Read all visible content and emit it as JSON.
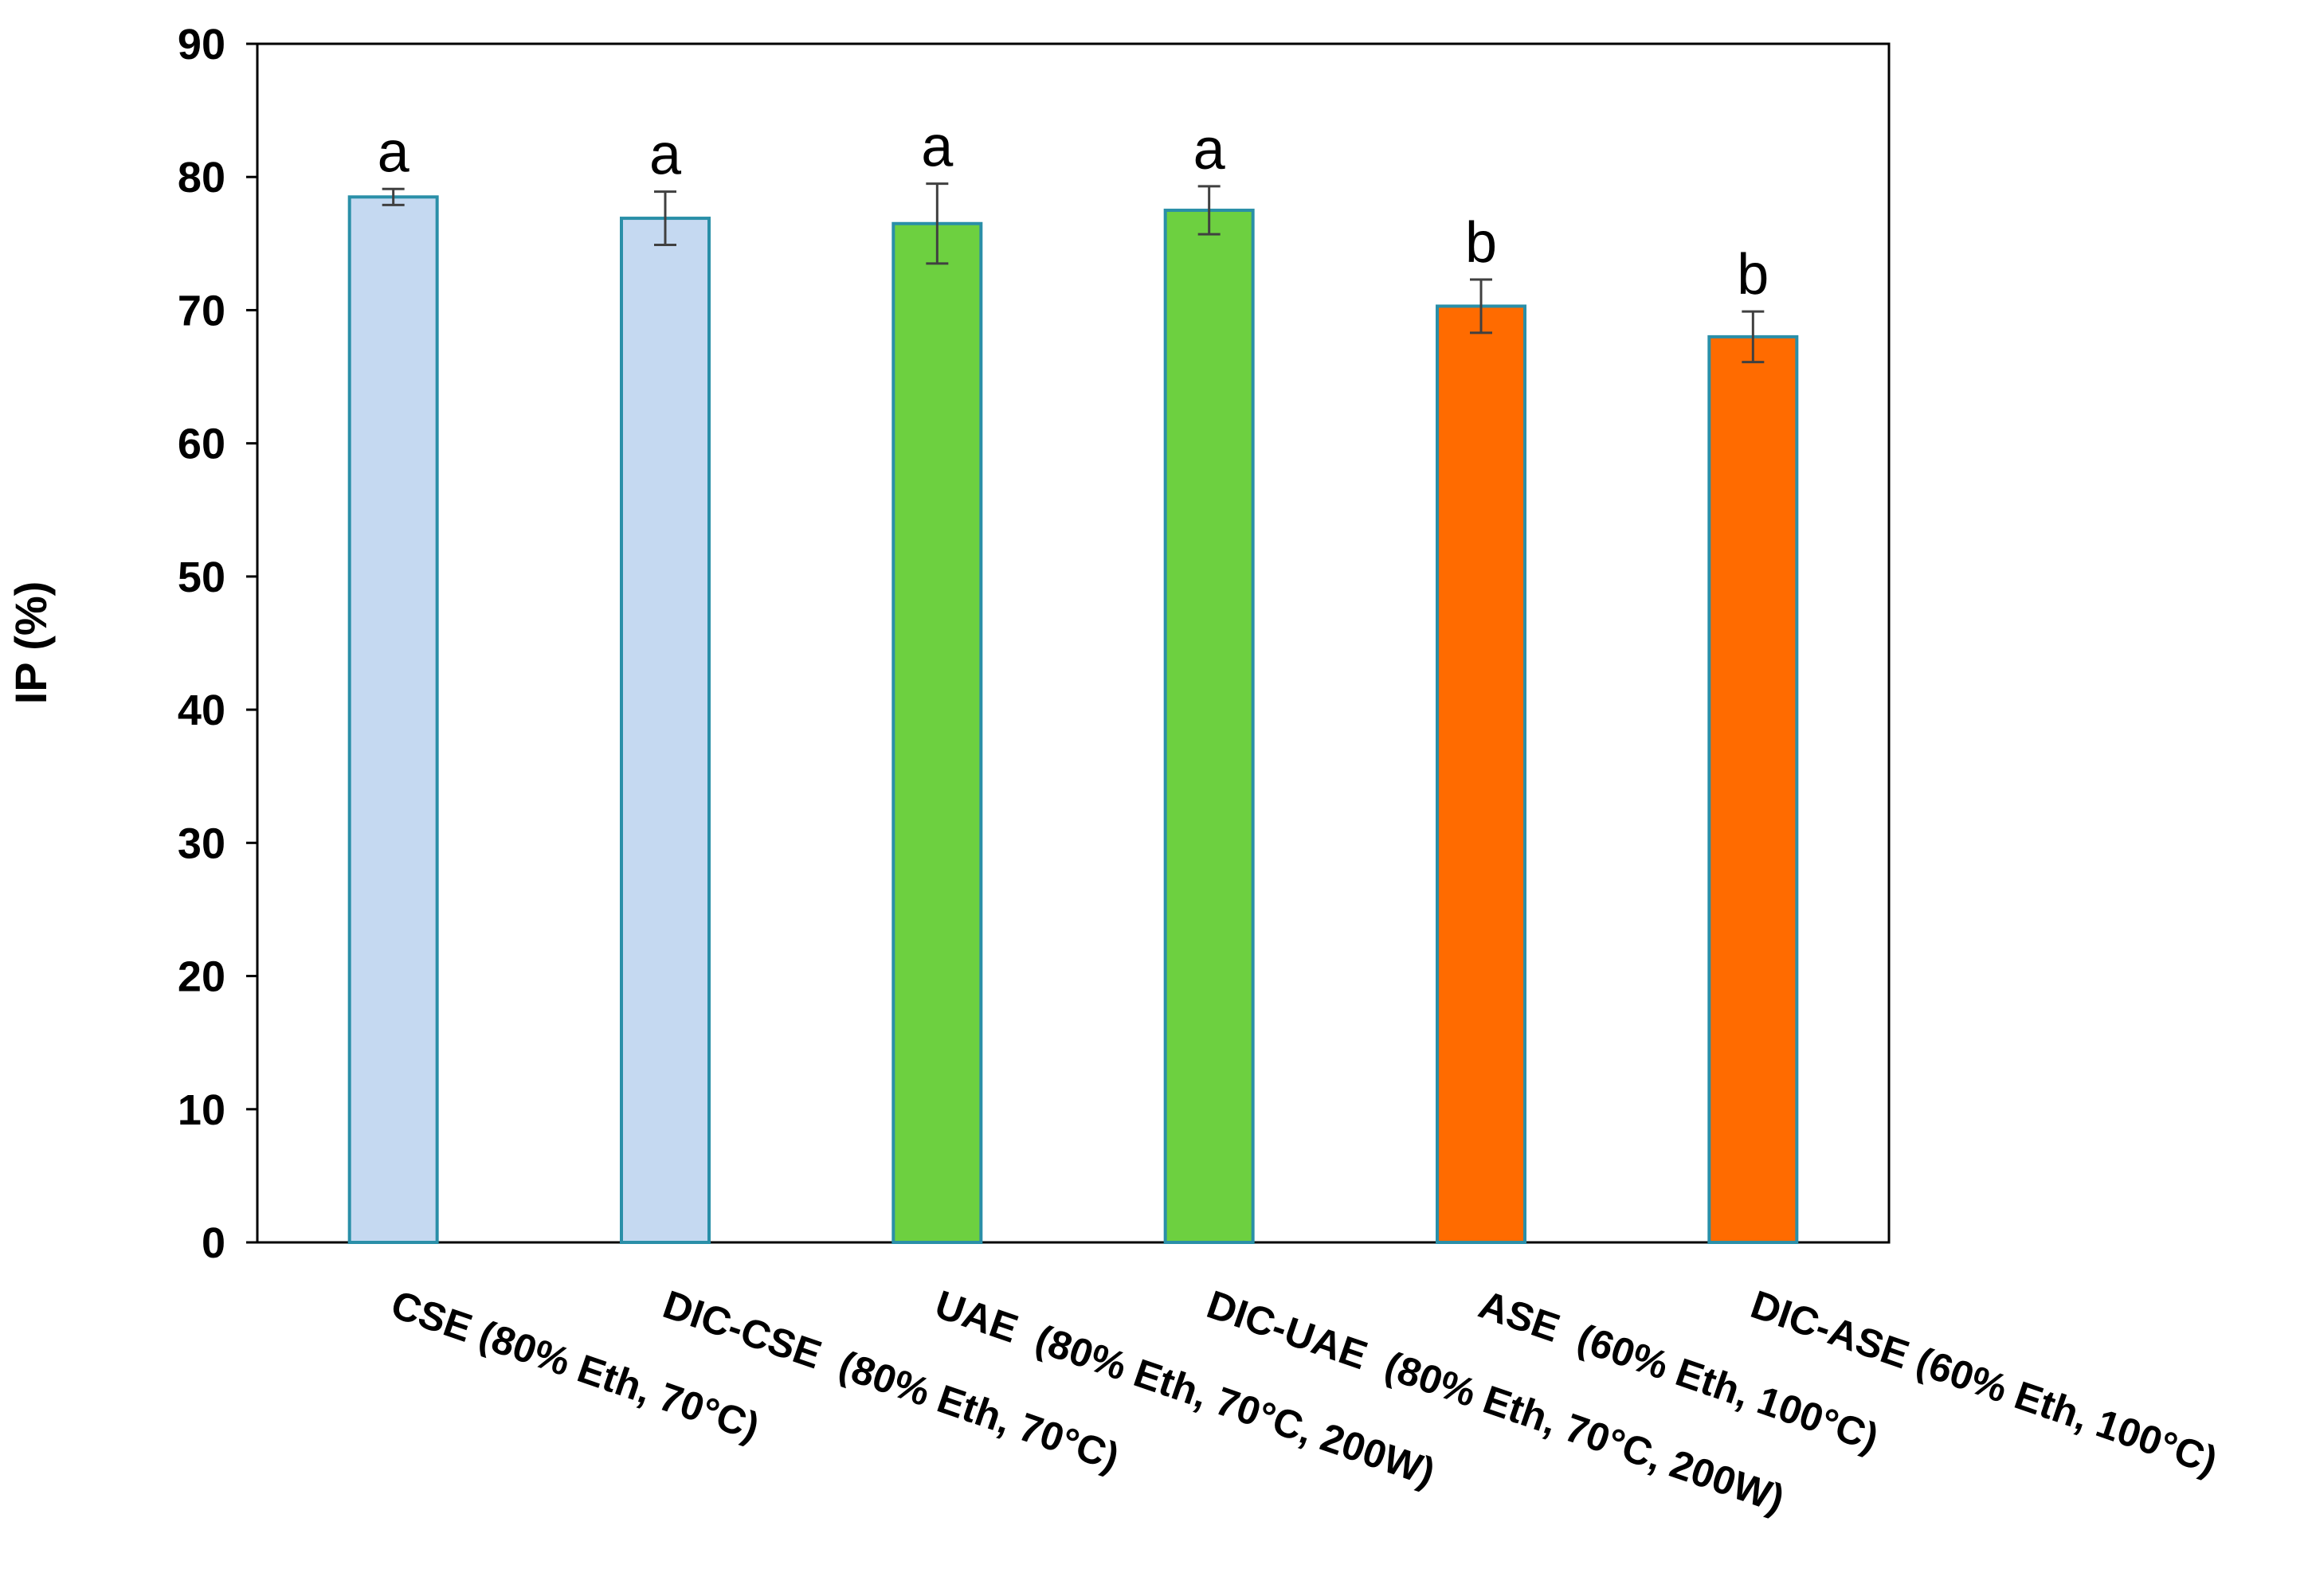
{
  "chart_data": {
    "type": "bar",
    "title": "",
    "xlabel": "",
    "ylabel": "IP (%)",
    "ylim": [
      0,
      90
    ],
    "yticks": [
      0,
      10,
      20,
      30,
      40,
      50,
      60,
      70,
      80,
      90
    ],
    "grid": false,
    "legend": "none",
    "bar_edge_color": "#2A8FA8",
    "error_bar_color": "#404040",
    "categories": [
      "CSE (80% Eth, 70°C)",
      "DIC-CSE  (80% Eth, 70°C)",
      "UAE  (80% Eth, 70°C, 200W)",
      "DIC-UAE  (80% Eth, 70°C, 200W)",
      "ASE  (60% Eth, 100°C)",
      "DIC-ASE (60% Eth, 100°C)"
    ],
    "values": [
      78.5,
      76.9,
      76.5,
      77.5,
      70.3,
      68.0
    ],
    "errors": [
      0.6,
      2.0,
      3.0,
      1.8,
      2.0,
      1.9
    ],
    "significance": [
      "a",
      "a",
      "a",
      "a",
      "b",
      "b"
    ],
    "colors": [
      "#C5D9F1",
      "#C5D9F1",
      "#6DD040",
      "#6DD040",
      "#FF6B00",
      "#FF6B00"
    ]
  }
}
